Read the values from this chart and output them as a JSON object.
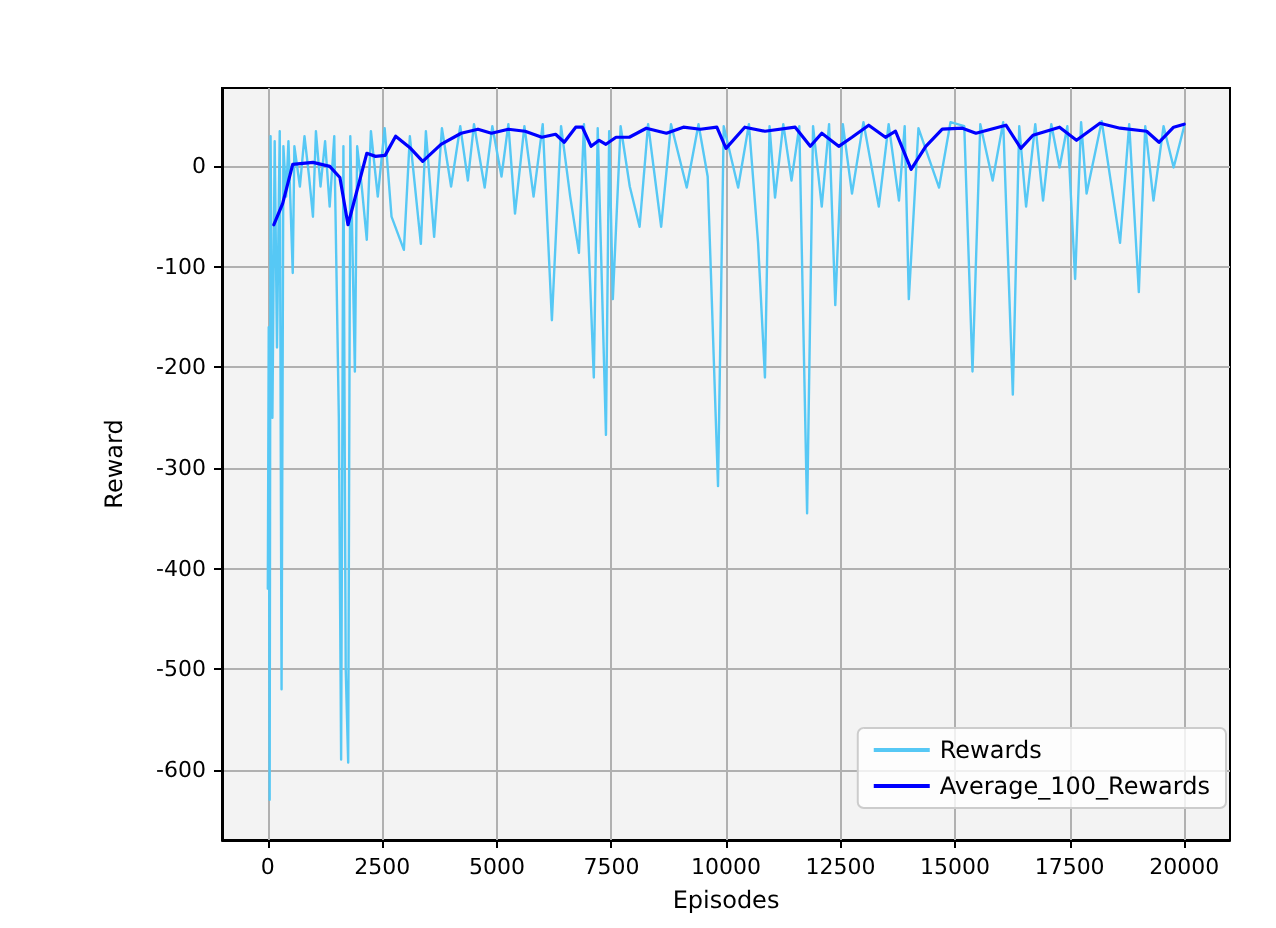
{
  "chart_data": {
    "type": "line",
    "xlabel": "Episodes",
    "ylabel": "Reward",
    "xlim": [
      -1000,
      21000
    ],
    "xticks": [
      0,
      2500,
      5000,
      7500,
      10000,
      12500,
      15000,
      17500,
      20000
    ],
    "ylim": [
      -670,
      78
    ],
    "yticks": [
      -600,
      -500,
      -400,
      -300,
      -200,
      -100,
      0
    ],
    "grid": true,
    "legend": "bottom right",
    "marker": "none",
    "line_style": "solid",
    "series": [
      {
        "name": "Rewards",
        "color": "#56c8f5",
        "x": [
          0,
          20,
          40,
          60,
          100,
          150,
          200,
          260,
          300,
          340,
          400,
          450,
          544,
          580,
          700,
          800,
          900,
          985,
          1050,
          1150,
          1250,
          1350,
          1450,
          1550,
          1600,
          1650,
          1700,
          1754,
          1800,
          1900,
          1950,
          2050,
          2160,
          2250,
          2400,
          2550,
          2700,
          2970,
          3100,
          3340,
          3450,
          3630,
          3800,
          4000,
          4200,
          4366,
          4500,
          4733,
          4900,
          5100,
          5250,
          5395,
          5600,
          5800,
          6000,
          6200,
          6400,
          6600,
          6790,
          6900,
          7115,
          7200,
          7380,
          7450,
          7530,
          7700,
          7900,
          8114,
          8300,
          8585,
          8800,
          9143,
          9400,
          9600,
          9826,
          9950,
          10265,
          10500,
          10700,
          10850,
          10950,
          11070,
          11250,
          11430,
          11600,
          11770,
          11900,
          12090,
          12250,
          12385,
          12550,
          12750,
          13000,
          13335,
          13550,
          13775,
          13900,
          13990,
          14200,
          14650,
          14900,
          15200,
          15380,
          15550,
          15820,
          16050,
          16260,
          16400,
          16550,
          16750,
          16920,
          17100,
          17280,
          17450,
          17620,
          17750,
          17870,
          18200,
          18600,
          18800,
          19010,
          19150,
          19330,
          19550,
          19770,
          20000
        ],
        "values": [
          -420,
          -160,
          -630,
          30,
          -250,
          25,
          -180,
          35,
          -520,
          20,
          -30,
          25,
          -106,
          20,
          -20,
          30,
          -10,
          -50,
          35,
          -20,
          25,
          -40,
          30,
          -250,
          -590,
          20,
          -500,
          -593,
          30,
          -204,
          20,
          -20,
          -73,
          35,
          -30,
          38,
          -50,
          -83,
          30,
          -77,
          35,
          -70,
          38,
          -20,
          40,
          -14,
          42,
          -21,
          40,
          -10,
          42,
          -47,
          40,
          -30,
          42,
          -153,
          40,
          -30,
          -86,
          42,
          -210,
          38,
          -267,
          35,
          -132,
          40,
          -20,
          -60,
          42,
          -60,
          42,
          -21,
          42,
          -10,
          -318,
          40,
          -21,
          42,
          -76,
          -210,
          40,
          -31,
          42,
          -14,
          40,
          -345,
          40,
          -40,
          42,
          -138,
          42,
          -27,
          44,
          -40,
          42,
          -34,
          40,
          -132,
          38,
          -21,
          44,
          40,
          -204,
          42,
          -14,
          44,
          -227,
          40,
          -40,
          42,
          -34,
          42,
          -1,
          40,
          -112,
          44,
          -27,
          45,
          -76,
          42,
          -125,
          40,
          -34,
          40,
          -1,
          40
        ]
      },
      {
        "name": "Average_100_Rewards",
        "color": "#0000ff",
        "x": [
          132,
          323,
          544,
          985,
          1352,
          1573,
          1750,
          2160,
          2350,
          2560,
          2790,
          3116,
          3380,
          3780,
          4220,
          4586,
          4880,
          5250,
          5615,
          5980,
          6280,
          6470,
          6720,
          6865,
          7056,
          7230,
          7380,
          7600,
          7890,
          8260,
          8700,
          9070,
          9440,
          9800,
          10000,
          10410,
          10850,
          11510,
          11840,
          12090,
          12460,
          12750,
          13115,
          13480,
          13700,
          14040,
          14360,
          14720,
          15160,
          15455,
          16110,
          16435,
          16700,
          17280,
          17650,
          18160,
          18600,
          19180,
          19450,
          19770,
          20000
        ],
        "values": [
          -58,
          -37,
          2,
          4,
          0,
          -11,
          -58,
          13,
          10,
          11,
          30,
          18,
          5,
          22,
          33,
          37,
          33,
          37,
          35,
          29,
          32,
          24,
          39,
          39,
          20,
          26,
          22,
          29,
          29,
          38,
          33,
          39,
          37,
          39,
          18,
          39,
          35,
          39,
          20,
          33,
          20,
          29,
          41,
          29,
          35,
          -3,
          20,
          37,
          38,
          33,
          41,
          18,
          31,
          39,
          26,
          43,
          38,
          35,
          24,
          39,
          42
        ]
      }
    ]
  }
}
